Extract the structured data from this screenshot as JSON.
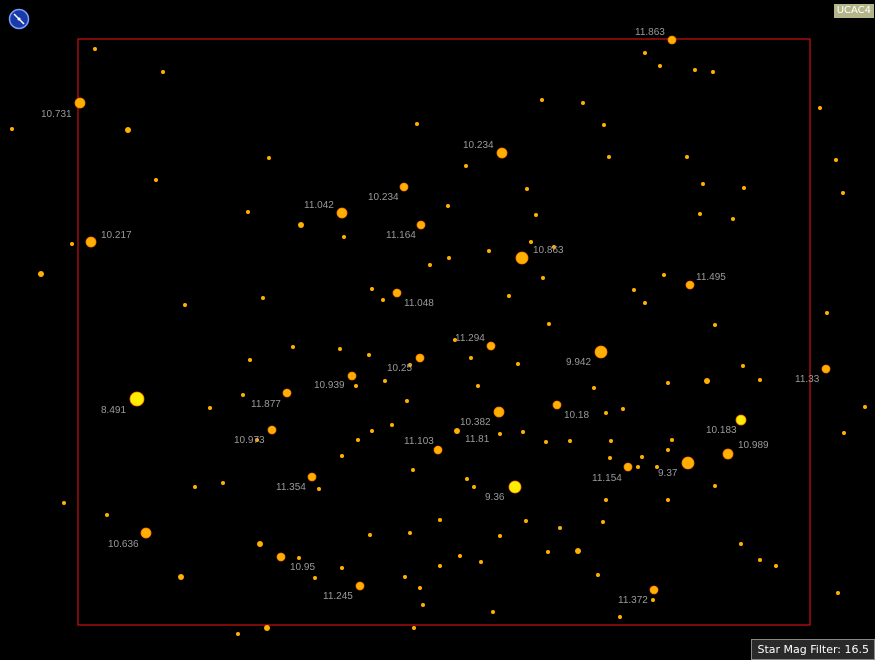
{
  "catalog": "UCAC4",
  "mag_filter": "Star Mag Filter: 16.5",
  "frame_color": "#cc1111",
  "star_color": "#ffb000",
  "bright_star_color": "#ffee00",
  "compass_icon": "compass-icon",
  "labels": [
    "11.863",
    "10.731",
    "10.234",
    "10.217",
    "11.042",
    "10.234",
    "11.164",
    "10.863",
    "11.048",
    "11.495",
    "11.294",
    "9.942",
    "10.25",
    "10.939",
    "11.33",
    "8.491",
    "11.877",
    "10.382",
    "10.18",
    "10.973",
    "11.103",
    "11.81",
    "10.183",
    "10.989",
    "9.37",
    "11.154",
    "11.354",
    "9.36",
    "10.636",
    "10.95",
    "11.245",
    "11.372"
  ]
}
